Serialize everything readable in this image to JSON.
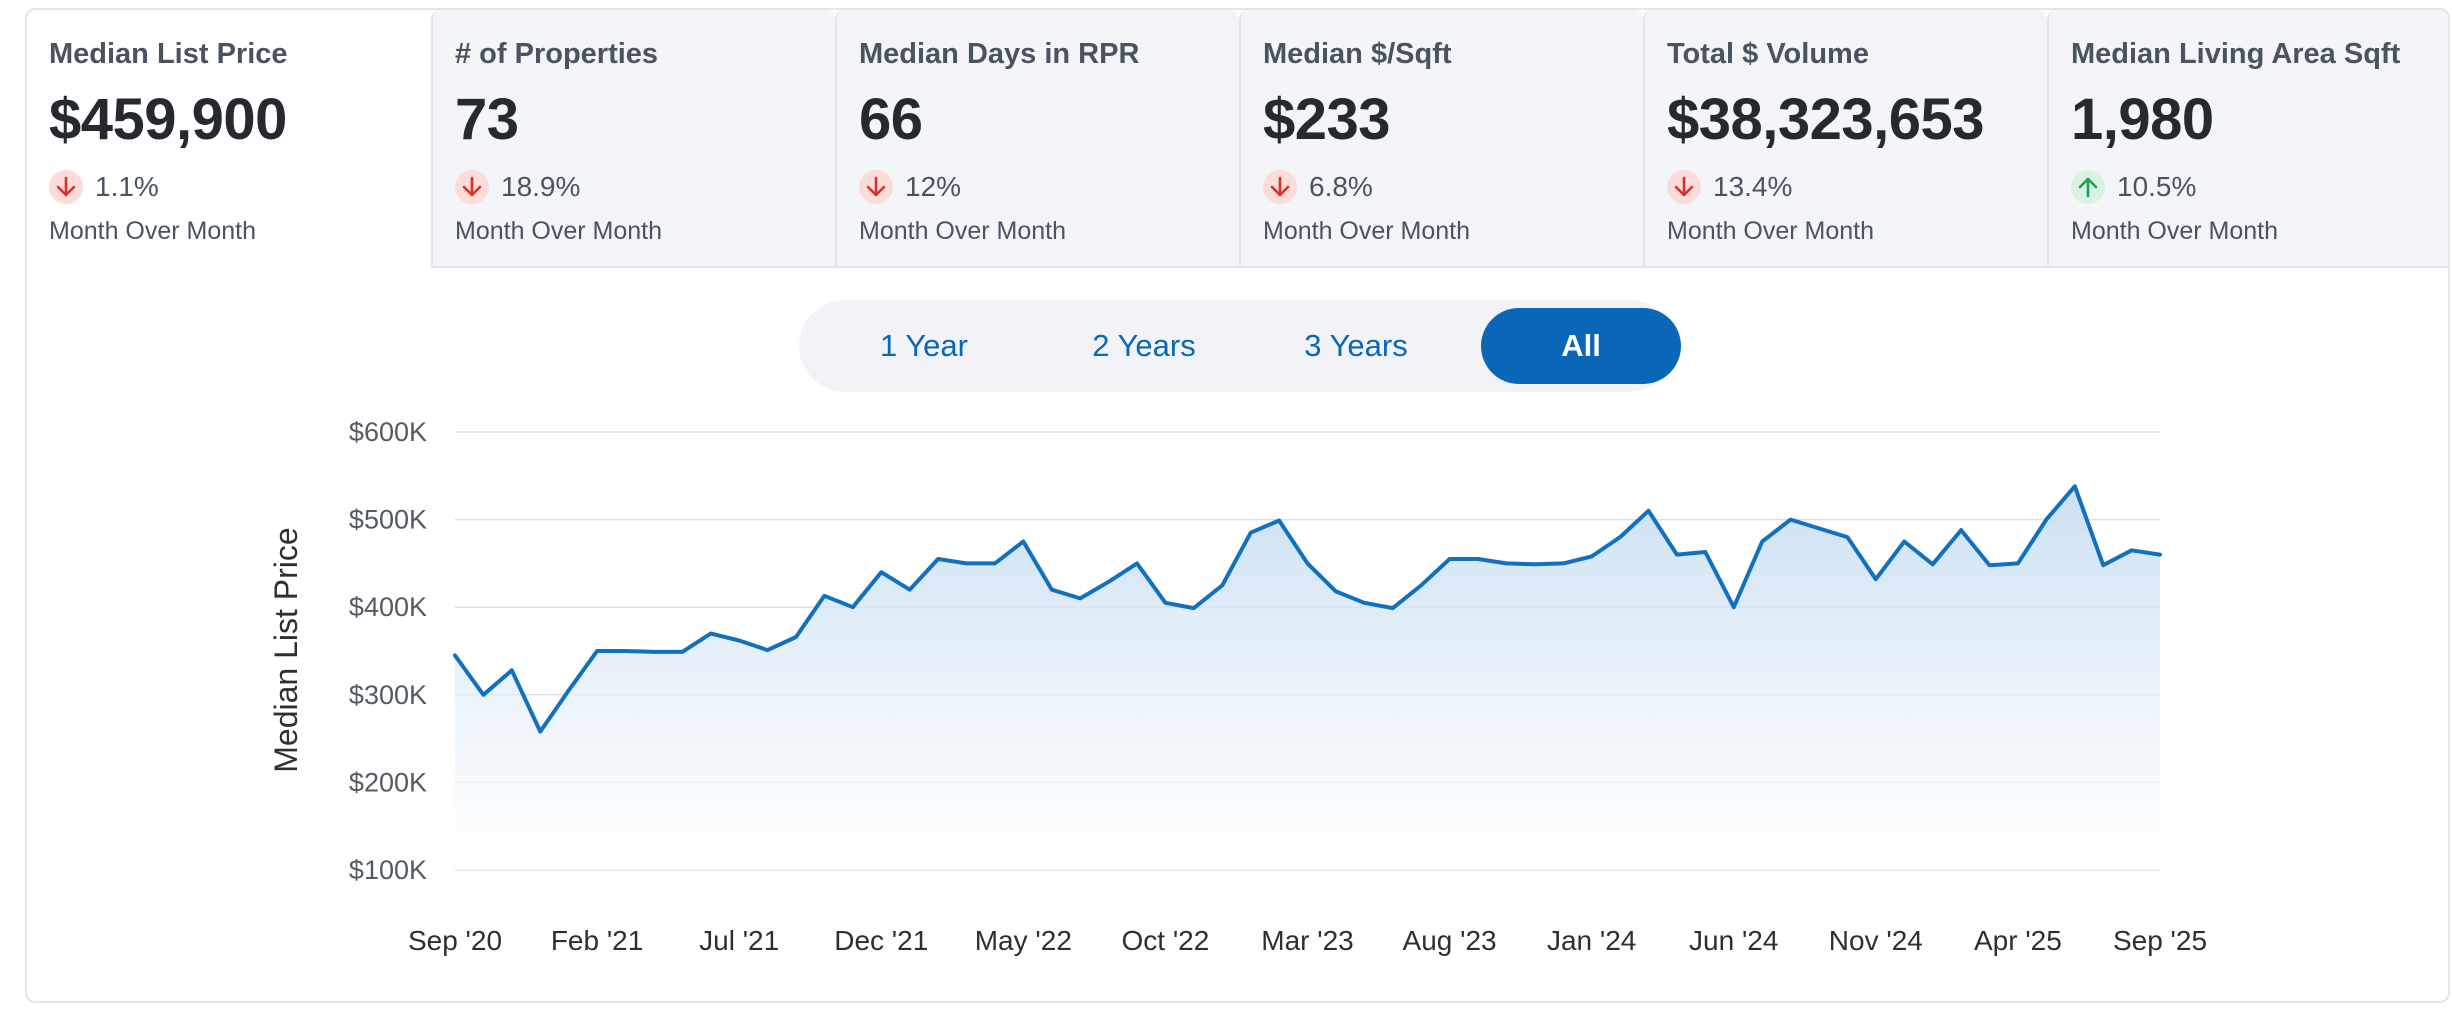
{
  "tiles": [
    {
      "label": "Median List Price",
      "value": "$459,900",
      "direction": "down",
      "change": "1.1%",
      "period": "Month Over Month"
    },
    {
      "label": "# of Properties",
      "value": "73",
      "direction": "down",
      "change": "18.9%",
      "period": "Month Over Month"
    },
    {
      "label": "Median Days in RPR",
      "value": "66",
      "direction": "down",
      "change": "12%",
      "period": "Month Over Month"
    },
    {
      "label": "Median $/Sqft",
      "value": "$233",
      "direction": "down",
      "change": "6.8%",
      "period": "Month Over Month"
    },
    {
      "label": "Total $ Volume",
      "value": "$38,323,653",
      "direction": "down",
      "change": "13.4%",
      "period": "Month Over Month"
    },
    {
      "label": "Median Living Area Sqft",
      "value": "1,980",
      "direction": "up",
      "change": "10.5%",
      "period": "Month Over Month"
    }
  ],
  "range": {
    "options": [
      "1 Year",
      "2 Years",
      "3 Years",
      "All"
    ],
    "selected": "All"
  },
  "colors": {
    "accent": "#0a67b8",
    "down": "#d9312b",
    "up": "#1e9e50",
    "line": "#1170c0"
  },
  "chart_data": {
    "type": "area",
    "ylabel": "Median List Price",
    "ylim": [
      100000,
      600000
    ],
    "yticks": [
      100000,
      200000,
      300000,
      400000,
      500000,
      600000
    ],
    "ytick_labels": [
      "$100K",
      "$200K",
      "$300K",
      "$400K",
      "$500K",
      "$600K"
    ],
    "xtick_labels": [
      "Sep '20",
      "Feb '21",
      "Jul '21",
      "Dec '21",
      "May '22",
      "Oct '22",
      "Mar '23",
      "Aug '23",
      "Jan '24",
      "Jun '24",
      "Nov '24",
      "Apr '25",
      "Sep '25"
    ],
    "grid": true,
    "x": [
      "2020-09",
      "2020-10",
      "2020-11",
      "2020-12",
      "2021-01",
      "2021-02",
      "2021-03",
      "2021-04",
      "2021-05",
      "2021-06",
      "2021-07",
      "2021-08",
      "2021-09",
      "2021-10",
      "2021-11",
      "2021-12",
      "2022-01",
      "2022-02",
      "2022-03",
      "2022-04",
      "2022-05",
      "2022-06",
      "2022-07",
      "2022-08",
      "2022-09",
      "2022-10",
      "2022-11",
      "2022-12",
      "2023-01",
      "2023-02",
      "2023-03",
      "2023-04",
      "2023-05",
      "2023-06",
      "2023-07",
      "2023-08",
      "2023-09",
      "2023-10",
      "2023-11",
      "2023-12",
      "2024-01",
      "2024-02",
      "2024-03",
      "2024-04",
      "2024-05",
      "2024-06",
      "2024-07",
      "2024-08",
      "2024-09",
      "2024-10",
      "2024-11",
      "2024-12",
      "2025-01",
      "2025-02",
      "2025-03",
      "2025-04",
      "2025-05",
      "2025-06",
      "2025-07",
      "2025-08",
      "2025-09"
    ],
    "values": [
      345000,
      300000,
      328000,
      258000,
      305000,
      350000,
      350000,
      349000,
      349000,
      370000,
      362000,
      351000,
      366000,
      413000,
      400000,
      440000,
      420000,
      455000,
      450000,
      450000,
      475000,
      420000,
      410000,
      429000,
      450000,
      405000,
      399000,
      425000,
      485000,
      499000,
      450000,
      418000,
      405000,
      399000,
      425000,
      455000,
      455000,
      450000,
      449000,
      450000,
      458000,
      480000,
      510000,
      460000,
      463000,
      400000,
      475000,
      500000,
      490000,
      480000,
      432000,
      475000,
      449000,
      488000,
      448000,
      450000,
      500000,
      538000,
      448000,
      465000,
      460000
    ]
  }
}
